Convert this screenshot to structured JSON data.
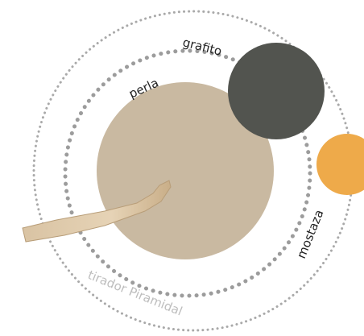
{
  "finishes": [
    {
      "label": "grafito"
    },
    {
      "label": "perla"
    },
    {
      "label": "mostaza"
    }
  ],
  "product": "tirador Piramidal"
}
